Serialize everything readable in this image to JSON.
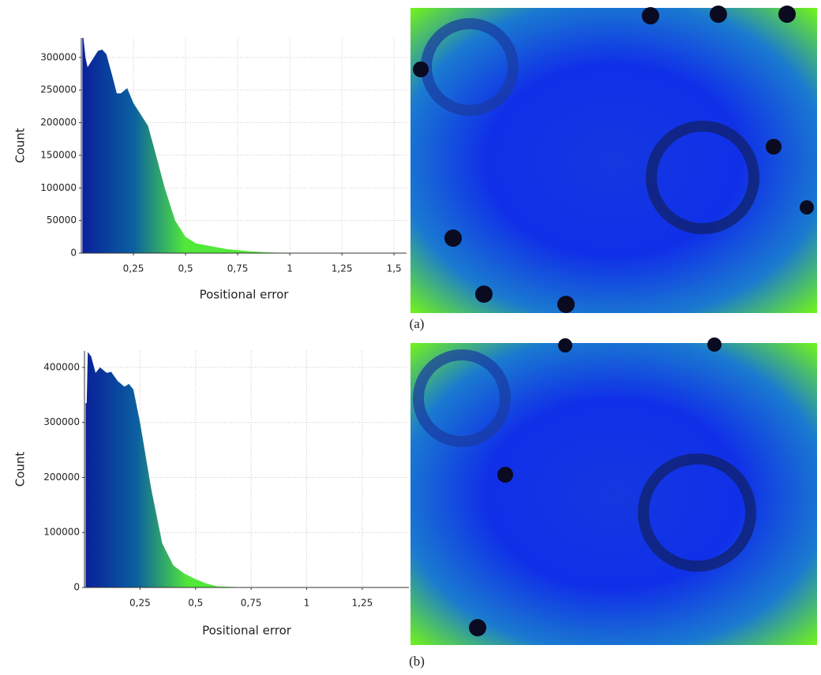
{
  "chart_data": [
    {
      "type": "area",
      "caption": "(a)",
      "x_label": "Positional error",
      "y_label": "Count",
      "x": [
        0.005,
        0.01,
        0.02,
        0.03,
        0.05,
        0.08,
        0.1,
        0.12,
        0.15,
        0.17,
        0.19,
        0.22,
        0.25,
        0.28,
        0.32,
        0.35,
        0.4,
        0.45,
        0.5,
        0.55,
        0.6,
        0.7,
        0.8,
        0.9,
        1.0,
        1.2,
        1.56
      ],
      "values": [
        330000,
        330000,
        300000,
        285000,
        295000,
        310000,
        312000,
        305000,
        270000,
        245000,
        245000,
        253000,
        230000,
        215000,
        195000,
        160000,
        100000,
        50000,
        25000,
        15000,
        12000,
        6000,
        3000,
        1000,
        500,
        200,
        0
      ],
      "xlim": [
        0,
        1.56
      ],
      "ylim": [
        0,
        330000
      ],
      "xticks": [
        {
          "value": 0.25,
          "label": "0,25"
        },
        {
          "value": 0.5,
          "label": "0,5"
        },
        {
          "value": 0.75,
          "label": "0,75"
        },
        1,
        {
          "value": 1.25,
          "label": "1,25"
        },
        {
          "value": 1.5,
          "label": "1,5"
        }
      ],
      "yticks": [
        0,
        50000,
        100000,
        150000,
        200000,
        250000,
        300000
      ],
      "grid": true,
      "colors": [
        "#0a1f9a",
        "#0b5fa0",
        "#52e83a"
      ]
    },
    {
      "type": "area",
      "caption": "(b)",
      "x_label": "Positional error",
      "y_label": "Count",
      "x": [
        0.005,
        0.01,
        0.015,
        0.03,
        0.05,
        0.07,
        0.1,
        0.12,
        0.15,
        0.18,
        0.2,
        0.22,
        0.25,
        0.3,
        0.35,
        0.4,
        0.45,
        0.5,
        0.55,
        0.6,
        0.7,
        0.8,
        1.46
      ],
      "values": [
        335000,
        335000,
        428000,
        420000,
        390000,
        400000,
        390000,
        392000,
        375000,
        365000,
        370000,
        360000,
        300000,
        180000,
        80000,
        40000,
        25000,
        15000,
        7000,
        2000,
        500,
        0,
        0
      ],
      "xlim": [
        0,
        1.46
      ],
      "ylim": [
        0,
        430000
      ],
      "xticks": [
        {
          "value": 0.25,
          "label": "0,25"
        },
        {
          "value": 0.5,
          "label": "0,5"
        },
        {
          "value": 0.75,
          "label": "0,75"
        },
        1,
        {
          "value": 1.25,
          "label": "1,25"
        }
      ],
      "yticks": [
        0,
        100000,
        200000,
        300000,
        400000
      ],
      "grid": true,
      "colors": [
        "#0a1f9a",
        "#0b5fa0",
        "#52e83a"
      ]
    }
  ]
}
